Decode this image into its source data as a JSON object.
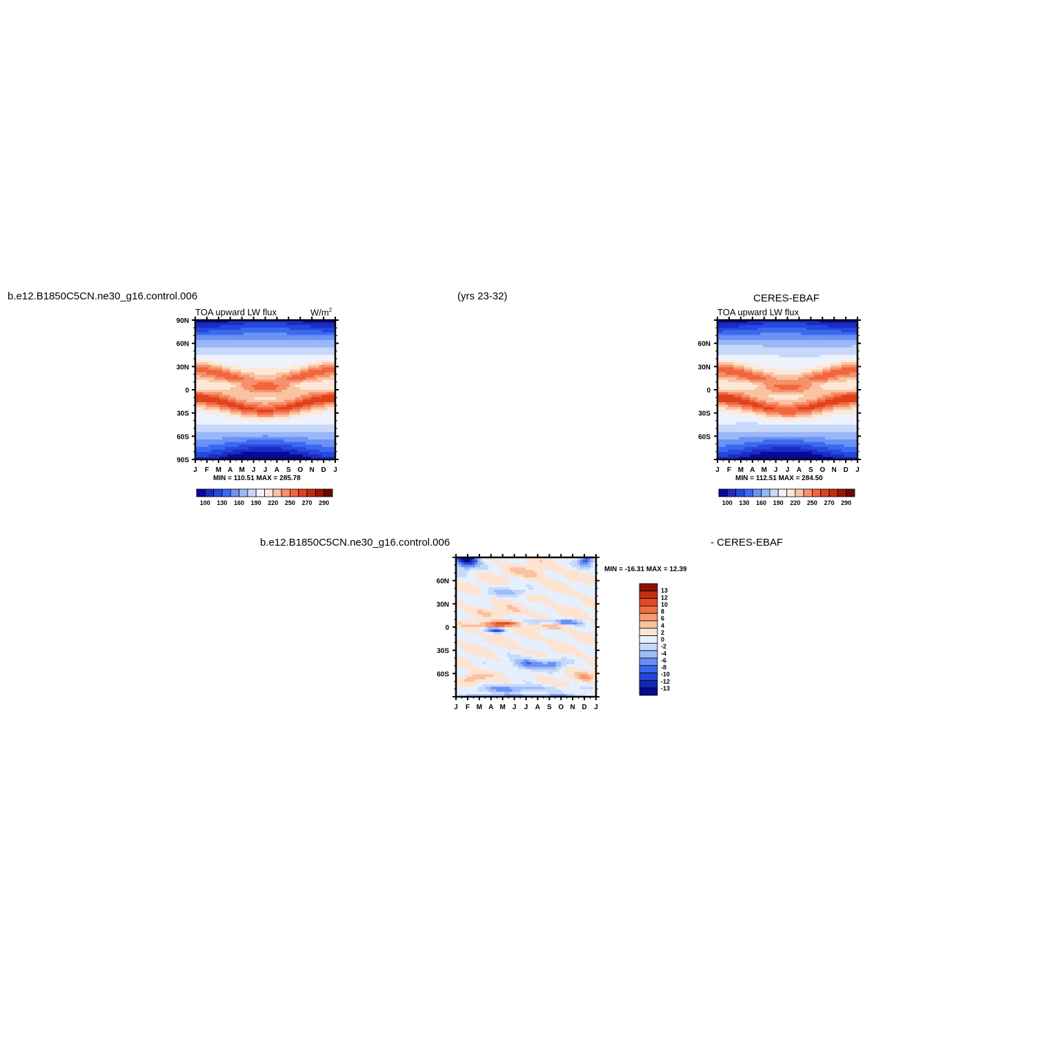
{
  "header": {
    "case_name": "b.e12.B1850C5CN.ne30_g16.control.006",
    "years": "(yrs 23-32)",
    "obs_name": "CERES-EBAF"
  },
  "colors": {
    "abs_scale": [
      "#08089a",
      "#1a2cc2",
      "#2648de",
      "#3b6af0",
      "#6b93f5",
      "#9ab7f8",
      "#c6d9fb",
      "#eef2fd",
      "#fde8d8",
      "#f9c3a3",
      "#f6916b",
      "#f1663f",
      "#e0421e",
      "#c32a10",
      "#9b1404",
      "#6e0803"
    ],
    "diff_scale": [
      "#0a0a8c",
      "#1528b4",
      "#2346d8",
      "#3a66ec",
      "#6a90f3",
      "#9fbcf7",
      "#c6d9fb",
      "#e6effd",
      "#fde3d2",
      "#f9c2a1",
      "#f69a72",
      "#ef6e47",
      "#e14a24",
      "#c3300f",
      "#8e1204"
    ]
  },
  "chart_data": [
    {
      "id": "model",
      "type": "heatmap",
      "title": "TOA upward LW flux",
      "units_label": "W/m",
      "units_sup": "2",
      "x_tick_labels": [
        "J",
        "F",
        "M",
        "A",
        "M",
        "J",
        "J",
        "A",
        "S",
        "O",
        "N",
        "D",
        "J"
      ],
      "y_tick_labels": [
        "90N",
        "60N",
        "30N",
        "0",
        "30S",
        "60S",
        "90S"
      ],
      "minmax_label": "MIN = 110.51  MAX = 285.78",
      "min": 110.51,
      "max": 285.78,
      "colorbar_labels": [
        "100",
        "130",
        "160",
        "190",
        "220",
        "250",
        "270",
        "290"
      ]
    },
    {
      "id": "obs",
      "type": "heatmap",
      "title": "TOA upward LW flux",
      "x_tick_labels": [
        "J",
        "F",
        "M",
        "A",
        "M",
        "J",
        "J",
        "A",
        "S",
        "O",
        "N",
        "D",
        "J"
      ],
      "y_tick_labels": [
        "",
        "60N",
        "30N",
        "0",
        "30S",
        "60S",
        ""
      ],
      "minmax_label": "MIN = 112.51  MAX = 284.50",
      "min": 112.51,
      "max": 284.5,
      "colorbar_labels": [
        "100",
        "130",
        "160",
        "190",
        "220",
        "250",
        "270",
        "290"
      ]
    },
    {
      "id": "diff",
      "type": "heatmap",
      "title_left": "b.e12.B1850C5CN.ne30_g16.control.006",
      "title_right": "- CERES-EBAF",
      "x_tick_labels": [
        "J",
        "F",
        "M",
        "A",
        "M",
        "J",
        "J",
        "A",
        "S",
        "O",
        "N",
        "D",
        "J"
      ],
      "y_tick_labels": [
        "",
        "60N",
        "30N",
        "0",
        "30S",
        "60S",
        ""
      ],
      "minmax_label": "MIN = -16.31  MAX =   12.39",
      "min": -16.31,
      "max": 12.39,
      "colorbar_labels": [
        "13",
        "12",
        "10",
        "8",
        "6",
        "4",
        "2",
        "0",
        "-2",
        "-4",
        "-6",
        "-8",
        "-10",
        "-12",
        "-13"
      ]
    }
  ]
}
